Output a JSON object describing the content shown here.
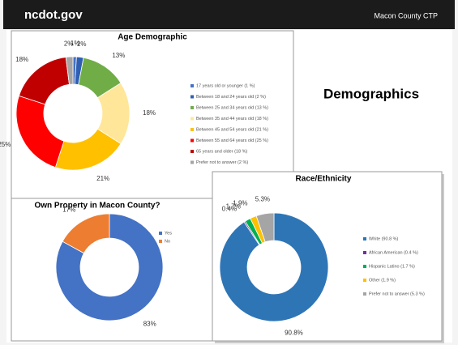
{
  "header": {
    "site": "ncdot.gov",
    "project": "Macon County CTP"
  },
  "heading": "Demographics",
  "chart_data": [
    {
      "type": "donut",
      "title": "Age Demographic",
      "categories": [
        "17 years old or younger (1 %)",
        "Between 18 and 24 years old (2 %)",
        "Between 25 and 34 years old (13 %)",
        "Between 35 and 44 years old (18 %)",
        "Between 45 and 54 years old (21 %)",
        "Between 55 and 64 years old (25 %)",
        "65 years and older (18 %)",
        "Prefer not to answer (2 %)"
      ],
      "values": [
        1,
        2,
        13,
        18,
        21,
        25,
        18,
        2
      ],
      "value_labels": [
        "1%",
        "2%",
        "13%",
        "18%",
        "21%",
        "25%",
        "18%",
        "2%"
      ],
      "colors": [
        "#4472c4",
        "#2f5fb3",
        "#70ad47",
        "#ffe699",
        "#ffc000",
        "#ff0000",
        "#c00000",
        "#a5a5a5"
      ]
    },
    {
      "type": "donut",
      "title": "Own Property in Macon County?",
      "categories": [
        "Yes",
        "No"
      ],
      "values": [
        83,
        17
      ],
      "value_labels": [
        "83%",
        "17%"
      ],
      "colors": [
        "#4472c4",
        "#ed7d31"
      ]
    },
    {
      "type": "donut",
      "title": "Race/Ethnicity",
      "categories": [
        "White (90.8 %)",
        "African American (0.4 %)",
        "Hispanic Latino (1.7 %)",
        "Other (1.9 %)",
        "Prefer not to answer (5.3 %)"
      ],
      "values": [
        90.8,
        0.4,
        1.7,
        1.9,
        5.3
      ],
      "value_labels": [
        "90.8%",
        "0.4%",
        "1.7%",
        "1.9%",
        "5.3%"
      ],
      "colors": [
        "#2e75b6",
        "#7030a0",
        "#00b050",
        "#ffc000",
        "#a5a5a5"
      ]
    }
  ]
}
